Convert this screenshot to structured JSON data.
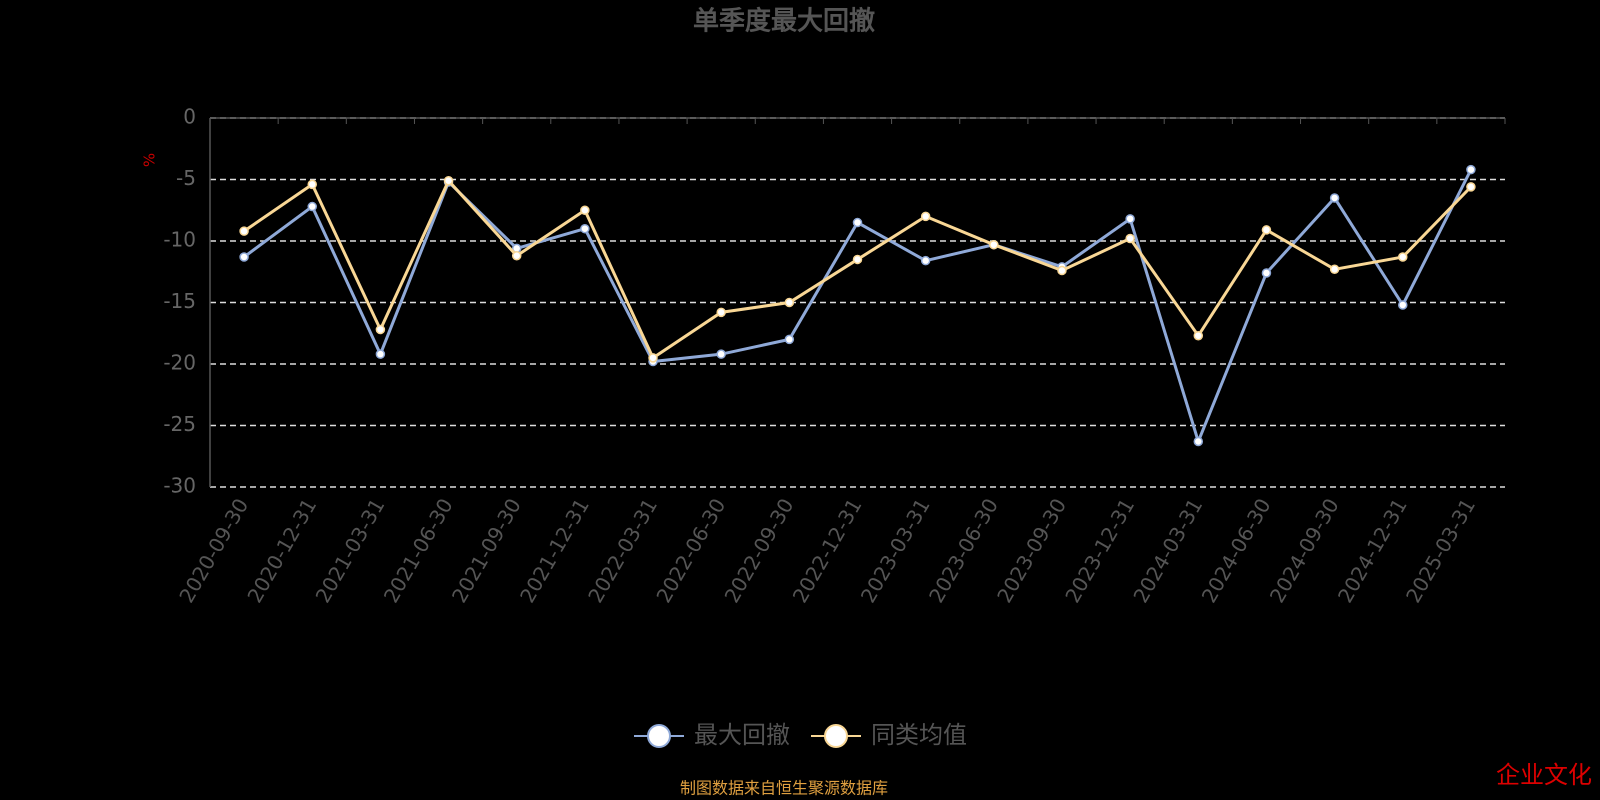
{
  "chart_data": {
    "type": "line",
    "title": "单季度最大回撤",
    "y_label": "%",
    "categories": [
      "2020-09-30",
      "2020-12-31",
      "2021-03-31",
      "2021-06-30",
      "2021-09-30",
      "2021-12-31",
      "2022-03-31",
      "2022-06-30",
      "2022-09-30",
      "2022-12-31",
      "2023-03-31",
      "2023-06-30",
      "2023-09-30",
      "2023-12-31",
      "2024-03-31",
      "2024-06-30",
      "2024-09-30",
      "2024-12-31",
      "2025-03-31"
    ],
    "series": [
      {
        "name": "最大回撤",
        "color": "#8fa9d8",
        "values": [
          -11.3,
          -7.2,
          -19.2,
          -5.2,
          -10.6,
          -9.0,
          -19.8,
          -19.2,
          -18.0,
          -8.5,
          -11.6,
          -10.3,
          -12.1,
          -8.2,
          -26.3,
          -12.6,
          -6.5,
          -15.2,
          -4.2
        ]
      },
      {
        "name": "同类均值",
        "color": "#f9d795",
        "values": [
          -9.2,
          -5.4,
          -17.2,
          -5.1,
          -11.2,
          -7.5,
          -19.5,
          -15.8,
          -15.0,
          -11.5,
          -8.0,
          -10.3,
          -12.4,
          -9.8,
          -17.7,
          -9.1,
          -12.3,
          -11.3,
          -5.6
        ]
      }
    ],
    "ylim": [
      -30,
      0
    ],
    "yticks": [
      0,
      -5,
      -10,
      -15,
      -20,
      -25,
      -30
    ],
    "grid": true,
    "legend": "bottom",
    "source": "制图数据来自恒生聚源数据库",
    "watermark": "企业文化"
  }
}
